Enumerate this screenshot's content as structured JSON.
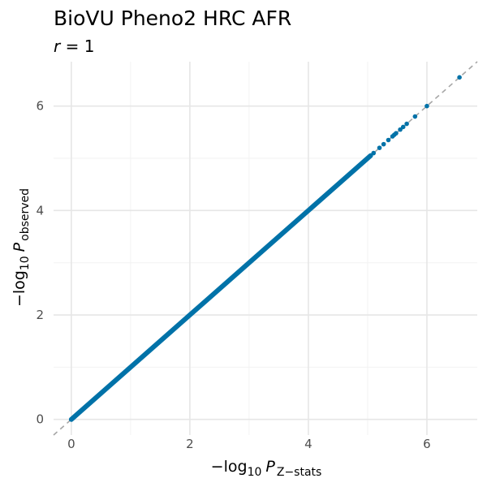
{
  "chart_data": {
    "type": "scatter",
    "title": "BioVU Pheno2 HRC AFR",
    "subtitle": "r = 1",
    "subtitle_italic_part": "r",
    "subtitle_rest": " = 1",
    "xlabel": "−log10 P Z−stats",
    "xlabel_parts": {
      "prefix": "−log",
      "sub": "10",
      "var": "P",
      "varsub": "Z−stats"
    },
    "ylabel": "−log10 P observed",
    "ylabel_parts": {
      "prefix": "−log",
      "sub": "10",
      "var": "P",
      "varsub": "observed"
    },
    "xlim": [
      -0.3,
      6.85
    ],
    "ylim": [
      -0.3,
      6.85
    ],
    "x_ticks": [
      0,
      2,
      4,
      6
    ],
    "y_ticks": [
      0,
      2,
      4,
      6
    ],
    "x_tick_labels": [
      "0",
      "2",
      "4",
      "6"
    ],
    "y_tick_labels": [
      "0",
      "2",
      "4",
      "6"
    ],
    "grid": true,
    "reference_line": {
      "slope": 1,
      "intercept": 0,
      "style": "dashed",
      "color": "#a6a6a6"
    },
    "series": [
      {
        "color": "#0072a8",
        "dense_range": [
          0,
          5.05
        ],
        "points": [
          [
            0,
            0
          ],
          [
            5.1,
            5.1
          ],
          [
            5.2,
            5.2
          ],
          [
            5.27,
            5.27
          ],
          [
            5.35,
            5.35
          ],
          [
            5.42,
            5.42
          ],
          [
            5.45,
            5.45
          ],
          [
            5.48,
            5.48
          ],
          [
            5.55,
            5.55
          ],
          [
            5.6,
            5.6
          ],
          [
            5.66,
            5.66
          ],
          [
            5.8,
            5.8
          ],
          [
            6.0,
            6.0
          ],
          [
            6.55,
            6.55
          ]
        ]
      }
    ]
  }
}
